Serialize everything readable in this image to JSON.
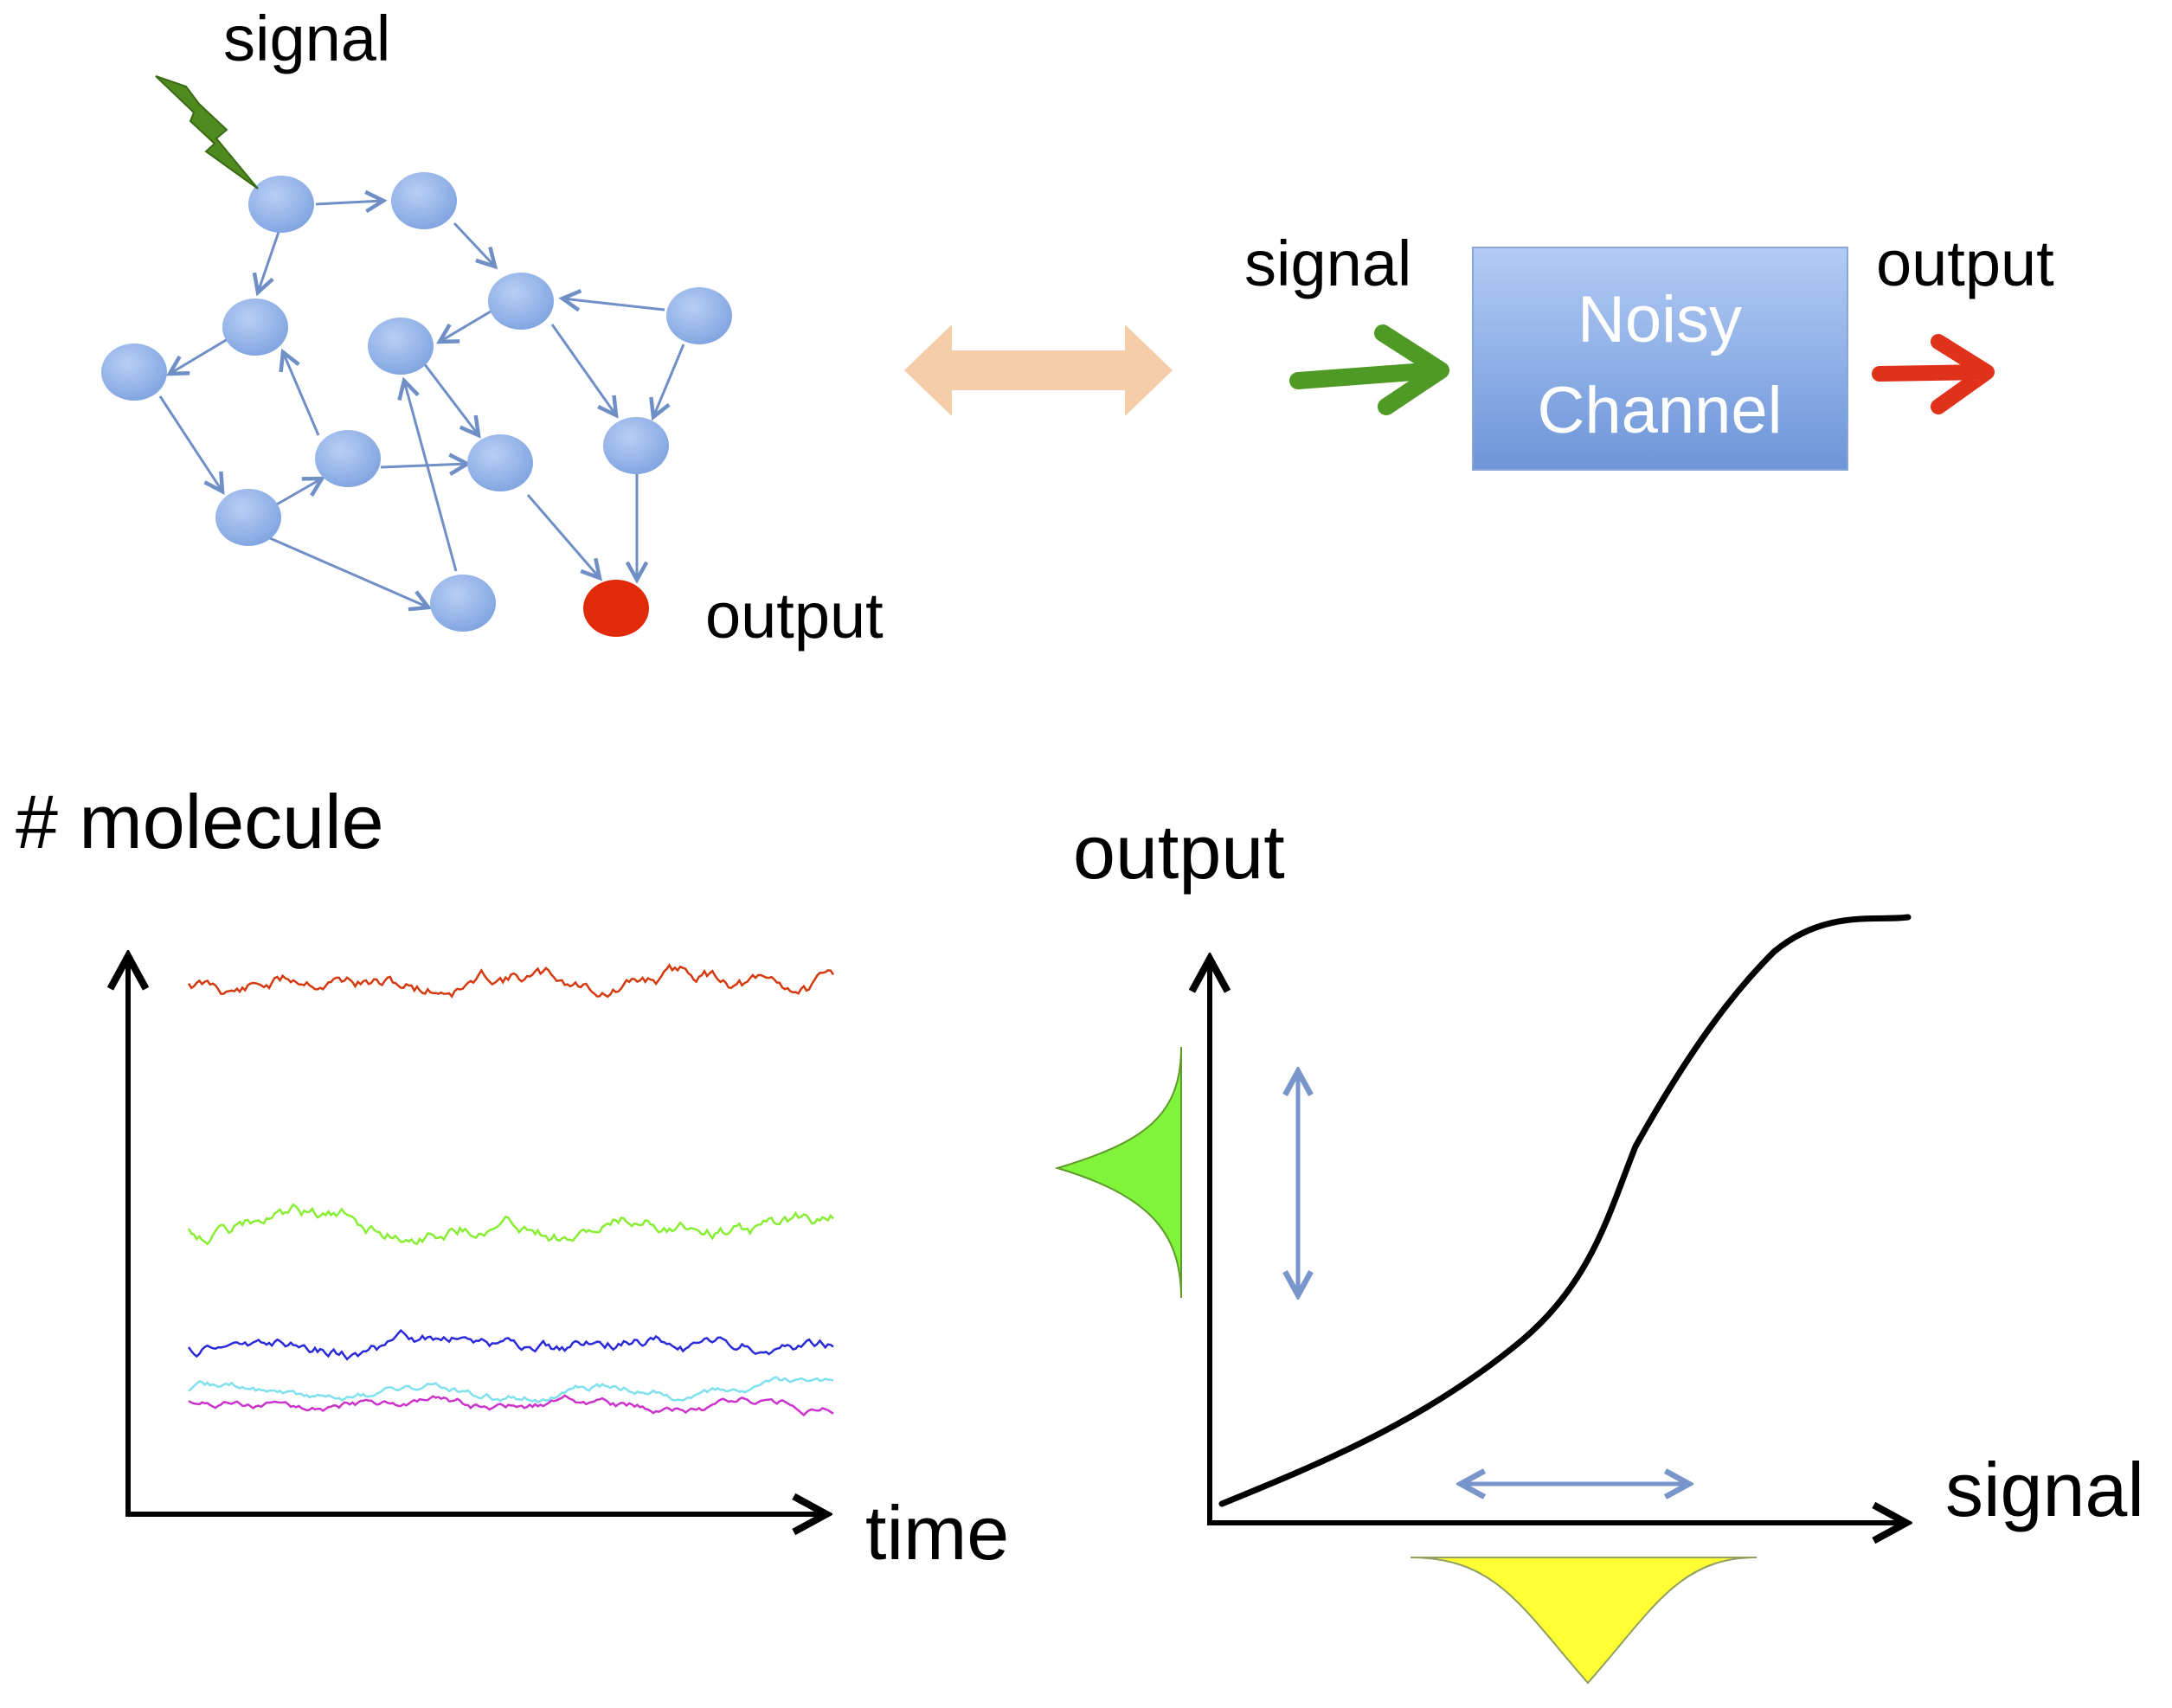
{
  "network": {
    "signal_label": "signal",
    "output_label": "output",
    "node_color": "#8fb1e8",
    "output_node_color": "#e02a0a",
    "signal_bolt_color": "#4f8a1e"
  },
  "equivalence_arrow_color": "#f5cda8",
  "channel": {
    "box_line1": "Noisy",
    "box_line2": "Channel",
    "input_label": "signal",
    "output_label": "output",
    "input_arrow_color": "#4f9a24",
    "output_arrow_color": "#e0321a",
    "box_color_top": "#b3cbf5",
    "box_color_bottom": "#6d95d8"
  },
  "timeseries": {
    "y_label": "# molecule",
    "x_label": "time",
    "traces": [
      {
        "color": "#d33a10"
      },
      {
        "color": "#88ee33"
      },
      {
        "color": "#2a2ad8"
      },
      {
        "color": "#7fe0ee"
      },
      {
        "color": "#cc33cc"
      }
    ]
  },
  "response": {
    "y_label": "output",
    "x_label": "signal",
    "output_distribution_color": "#7ff43a",
    "signal_distribution_color": "#ffff33",
    "spread_arrow_color": "#7896cc"
  }
}
